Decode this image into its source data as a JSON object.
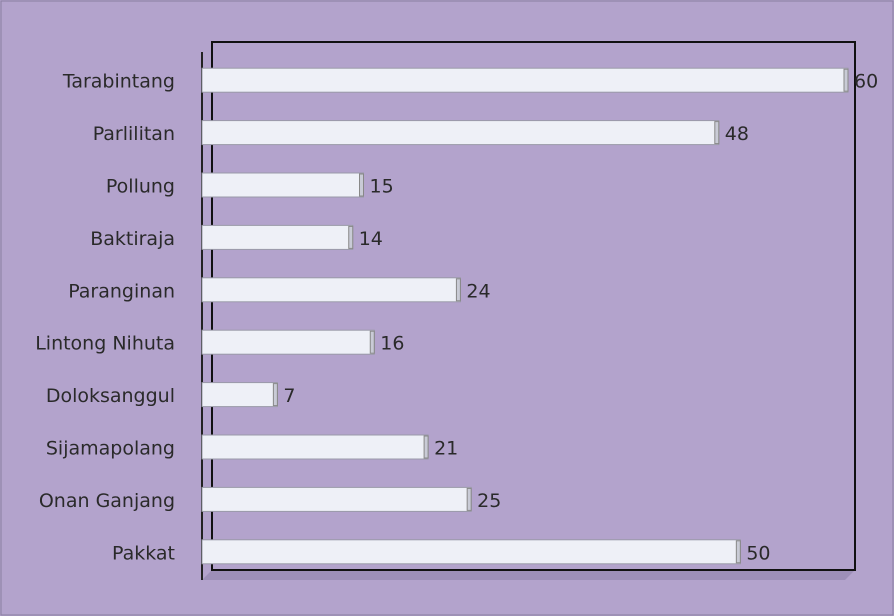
{
  "chart_data": {
    "type": "bar",
    "orientation": "horizontal",
    "categories": [
      "Tarabintang",
      "Parlilitan",
      "Pollung",
      "Baktiraja",
      "Paranginan",
      "Lintong Nihuta",
      "Doloksanggul",
      "Sijamapolang",
      "Onan Ganjang",
      "Pakkat"
    ],
    "values": [
      60,
      48,
      15,
      14,
      24,
      16,
      7,
      21,
      25,
      50
    ],
    "color": "#eef0f7",
    "xlim": [
      0,
      60
    ]
  }
}
